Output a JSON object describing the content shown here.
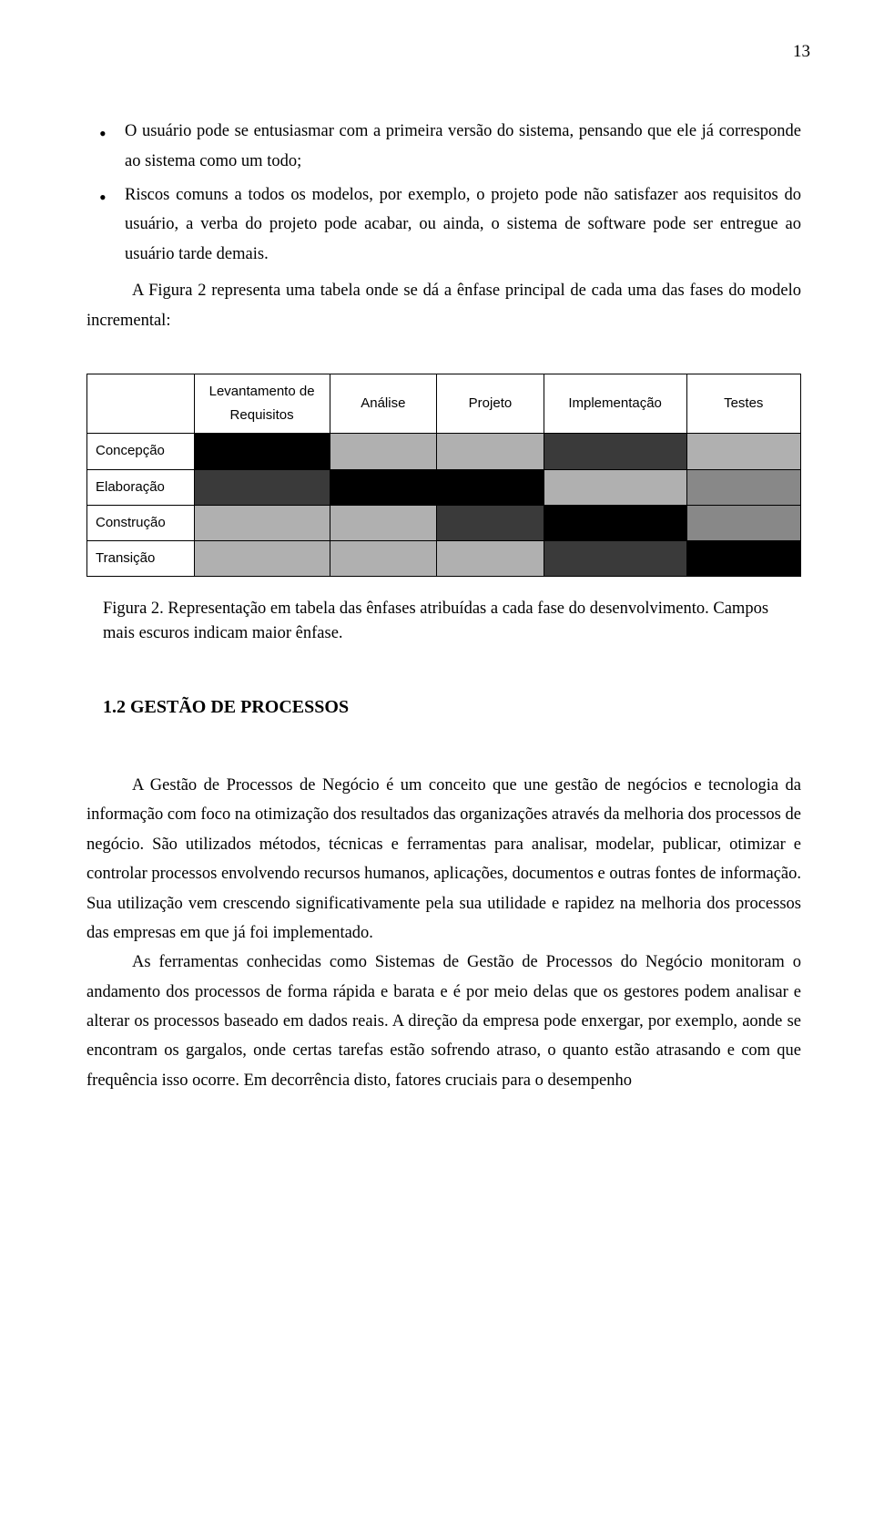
{
  "page_number": "13",
  "bullets": [
    "O usuário pode se entusiasmar com a primeira versão do sistema, pensando que ele já corresponde ao sistema como um todo;",
    "Riscos comuns a todos os modelos, por exemplo, o projeto pode não satisfazer aos requisitos do usuário, a verba do projeto pode acabar, ou ainda, o sistema de software pode ser entregue ao usuário tarde demais."
  ],
  "intro_para": "A Figura 2 representa uma tabela onde se dá a ênfase principal de cada uma das fases do modelo incremental:",
  "table": {
    "columns": [
      "Levantamento de Requisitos",
      "Análise",
      "Projeto",
      "Implementação",
      "Testes"
    ],
    "rows": [
      "Concepção",
      "Elaboração",
      "Construção",
      "Transição"
    ],
    "cell_colors": [
      [
        "#000000",
        "#b0b0b0",
        "#b0b0b0",
        "#3a3a3a",
        "#b0b0b0"
      ],
      [
        "#3a3a3a",
        "#000000",
        "#000000",
        "#b0b0b0",
        "#888888"
      ],
      [
        "#b0b0b0",
        "#b0b0b0",
        "#3a3a3a",
        "#000000",
        "#888888"
      ],
      [
        "#b0b0b0",
        "#b0b0b0",
        "#b0b0b0",
        "#3a3a3a",
        "#000000"
      ]
    ],
    "col_widths": [
      "15%",
      "19%",
      "15%",
      "15%",
      "20%",
      "16%"
    ]
  },
  "caption": "Figura 2. Representação em tabela das ênfases atribuídas a cada fase do desenvolvimento. Campos mais escuros indicam maior ênfase.",
  "section_heading": "1.2 GESTÃO DE PROCESSOS",
  "body": [
    "A Gestão de Processos de Negócio é um conceito que une gestão de negócios e tecnologia da informação com foco na otimização dos resultados das organizações através da melhoria dos processos de negócio. São utilizados métodos, técnicas e ferramentas para analisar, modelar, publicar, otimizar e controlar processos envolvendo recursos humanos, aplicações, documentos e outras fontes de informação. Sua utilização vem crescendo significativamente pela sua utilidade e rapidez na melhoria dos processos das empresas em que já foi implementado.",
    "As ferramentas conhecidas como Sistemas de Gestão de Processos do Negócio monitoram o andamento dos processos de forma rápida e barata e é por meio delas que os gestores podem analisar e alterar os processos baseado em dados reais. A direção da empresa pode enxergar, por exemplo, aonde se encontram os gargalos, onde certas tarefas estão sofrendo atraso, o quanto estão atrasando e com que frequência isso ocorre. Em decorrência disto, fatores cruciais para o desempenho"
  ]
}
